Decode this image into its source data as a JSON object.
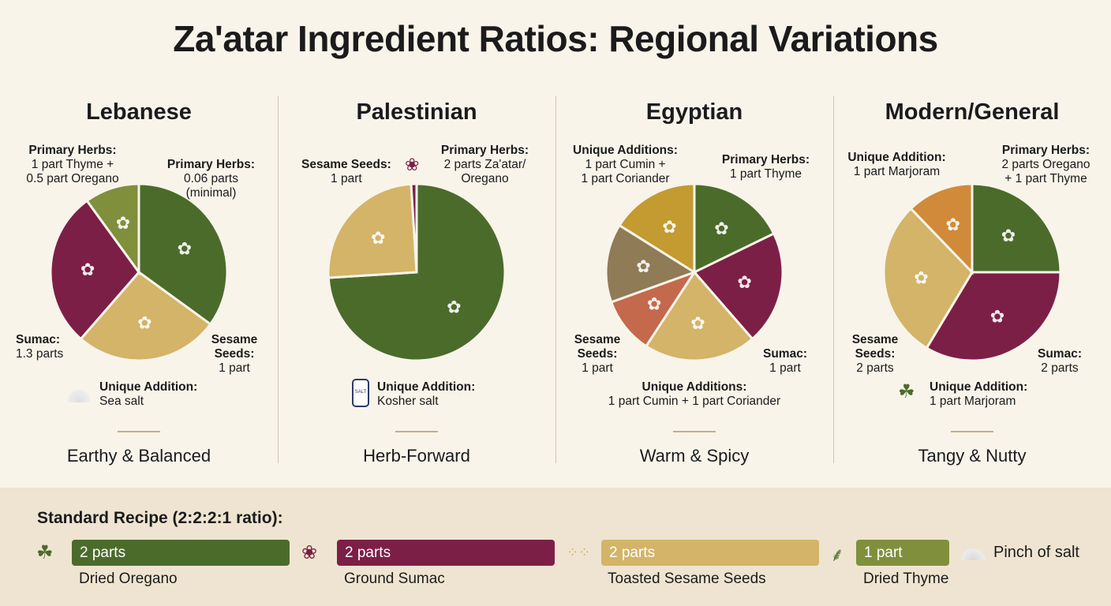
{
  "title": "Za'atar Ingredient Ratios: Regional Variations",
  "chart_data": [
    {
      "type": "pie",
      "title": "Lebanese",
      "tagline": "Earthy & Balanced",
      "slices": [
        {
          "label": "Primary Herbs: 0.06 parts (minimal)",
          "value": 35,
          "color": "#4b6b2b"
        },
        {
          "label": "Sesame Seeds: 1 part",
          "value": 26.4,
          "color": "#d3b468"
        },
        {
          "label": "Sumac: 1.3 parts",
          "value": 28.6,
          "color": "#7c1f47"
        },
        {
          "label": "Primary Herbs: 1 part Thyme + 0.5 part Oregano",
          "value": 10,
          "color": "#7f8f3c"
        }
      ],
      "annotations": {
        "herbs_a_head": "Primary Herbs:",
        "herbs_a_1": "1 part Thyme +",
        "herbs_a_2": "0.5 part Oregano",
        "herbs_b_head": "Primary Herbs:",
        "herbs_b_1": "0.06 parts",
        "herbs_b_2": "(minimal)",
        "sumac_head": "Sumac:",
        "sumac_1": "1.3 parts",
        "sesame_head": "Sesame",
        "sesame_head2": "Seeds:",
        "sesame_1": "1 part",
        "unique_head": "Unique Addition:",
        "unique_1": "Sea salt"
      }
    },
    {
      "type": "pie",
      "title": "Palestinian",
      "tagline": "Herb-Forward",
      "slices": [
        {
          "label": "Primary Herbs: 2 parts Za'atar/Oregano",
          "value": 74,
          "color": "#4b6b2b"
        },
        {
          "label": "Sesame Seeds: 1 part",
          "value": 25,
          "color": "#d3b468"
        },
        {
          "label": "Sumac",
          "value": 1,
          "color": "#7c1f47"
        }
      ],
      "annotations": {
        "sesame_head": "Sesame Seeds:",
        "sesame_1": "1 part",
        "herbs_head": "Primary Herbs:",
        "herbs_1": "2 parts Za'atar/",
        "herbs_2": "Oregano",
        "unique_head": "Unique Addition:",
        "unique_1": "Kosher salt",
        "salt_jar_text": "SALT"
      }
    },
    {
      "type": "pie",
      "title": "Egyptian",
      "tagline": "Warm & Spicy",
      "slices": [
        {
          "label": "Primary Herbs: 1 part Thyme",
          "value": 17.8,
          "color": "#4b6b2b"
        },
        {
          "label": "Sumac: 1 part",
          "value": 20.8,
          "color": "#7c1f47"
        },
        {
          "label": "Sesame Seeds: 1 part",
          "value": 20.6,
          "color": "#d3b468"
        },
        {
          "label": "Coral slice",
          "value": 10.3,
          "color": "#c4694b"
        },
        {
          "label": "Cumin",
          "value": 14.4,
          "color": "#8f7b56"
        },
        {
          "label": "Coriander",
          "value": 16.1,
          "color": "#c39b30"
        }
      ],
      "annotations": {
        "unique_top_head": "Unique Additions:",
        "unique_top_1": "1 part Cumin +",
        "unique_top_2": "1 part Coriander",
        "herbs_head": "Primary Herbs:",
        "herbs_1": "1 part Thyme",
        "sesame_head": "Sesame",
        "sesame_head2": "Seeds:",
        "sesame_1": "1 part",
        "sumac_head": "Sumac:",
        "sumac_1": "1 part",
        "unique_head": "Unique Additions:",
        "unique_1": "1 part Cumin + 1 part Coriander"
      }
    },
    {
      "type": "pie",
      "title": "Modern/General",
      "tagline": "Tangy & Nutty",
      "slices": [
        {
          "label": "Primary Herbs: 2 parts Oregano + 1 part Thyme",
          "value": 25,
          "color": "#4b6b2b"
        },
        {
          "label": "Sumac: 2 parts",
          "value": 33.6,
          "color": "#7c1f47"
        },
        {
          "label": "Sesame Seeds: 2 parts",
          "value": 29.2,
          "color": "#d3b468"
        },
        {
          "label": "Unique Addition: 1 part Marjoram",
          "value": 12.2,
          "color": "#d08a3a"
        }
      ],
      "annotations": {
        "unique_top_head": "Unique Addition:",
        "unique_top_1": "1 part Marjoram",
        "herbs_head": "Primary Herbs:",
        "herbs_1": "2 parts Oregano",
        "herbs_2": "+ 1 part Thyme",
        "sesame_head": "Sesame",
        "sesame_head2": "Seeds:",
        "sesame_1": "2 parts",
        "sumac_head": "Sumac:",
        "sumac_1": "2 parts",
        "unique_head": "Unique Addition:",
        "unique_1": "1 part Marjoram"
      }
    }
  ],
  "standard": {
    "title": "Standard Recipe (2:2:2:1 ratio):",
    "items": [
      {
        "parts": "2 parts",
        "name": "Dried Oregano",
        "value": 2,
        "color": "#4b6b2b",
        "icon": "oregano-leaf-icon"
      },
      {
        "parts": "2 parts",
        "name": "Ground Sumac",
        "value": 2,
        "color": "#7c1f47",
        "icon": "sumac-berry-icon"
      },
      {
        "parts": "2 parts",
        "name": "Toasted Sesame Seeds",
        "value": 2,
        "color": "#d3b468",
        "icon": "sesame-seeds-icon"
      },
      {
        "parts": "1 part",
        "name": "Dried Thyme",
        "value": 1,
        "color": "#7f8f3c",
        "icon": "thyme-sprig-icon"
      }
    ],
    "salt": "Pinch of salt"
  }
}
